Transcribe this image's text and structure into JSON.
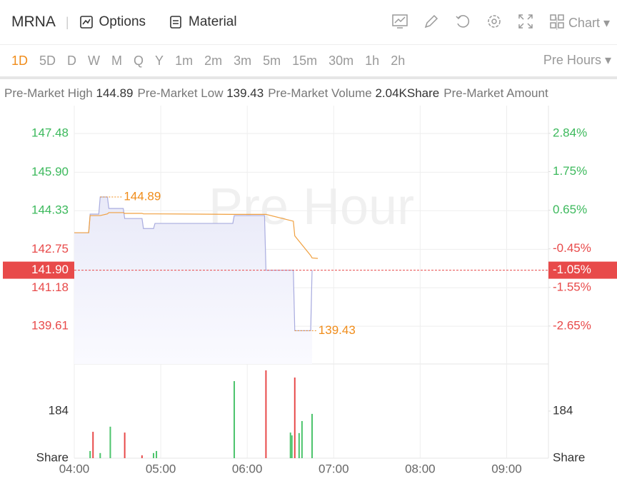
{
  "toolbar": {
    "symbol": "MRNA",
    "buttons": [
      "Options",
      "Material"
    ],
    "chart_button": "Chart",
    "intervals": [
      "1D",
      "5D",
      "D",
      "W",
      "M",
      "Q",
      "Y",
      "1m",
      "2m",
      "3m",
      "5m",
      "15m",
      "30m",
      "1h",
      "2h"
    ],
    "active_interval": "1D",
    "session": "Pre Hours"
  },
  "info": [
    {
      "label": "Pre-Market High",
      "value": "144.89"
    },
    {
      "label": "Pre-Market Low",
      "value": "139.43"
    },
    {
      "label": "Pre-Market Volume",
      "value": "2.04KShare"
    },
    {
      "label": "Pre-Market Amount",
      "value": ""
    }
  ],
  "chart_data": {
    "type": "line",
    "watermark": "Pre Hour",
    "x": [
      240,
      250,
      251,
      257,
      258,
      263,
      264,
      274,
      275,
      287,
      288,
      295,
      296,
      350,
      351,
      372,
      373,
      392,
      393,
      404,
      405,
      409
    ],
    "xlim": [
      240,
      569
    ],
    "xticks": [
      {
        "value": 240,
        "label": "04:00"
      },
      {
        "value": 300,
        "label": "05:00"
      },
      {
        "value": 360,
        "label": "06:00"
      },
      {
        "value": 420,
        "label": "07:00"
      },
      {
        "value": 480,
        "label": "08:00"
      },
      {
        "value": 540,
        "label": "09:00"
      }
    ],
    "series": [
      {
        "color": "#a9acdf",
        "fill": true,
        "values": [
          143.43,
          143.43,
          144.19,
          144.19,
          144.89,
          144.89,
          144.42,
          144.42,
          144.01,
          144.01,
          143.6,
          143.6,
          143.81,
          143.81,
          144.13,
          144.13,
          141.9,
          141.9,
          139.43,
          139.43,
          141.9,
          null
        ]
      },
      {
        "color": "#f0a040",
        "values": [
          143.43,
          143.43,
          144.13,
          144.13,
          144.13,
          144.2,
          144.25,
          144.25,
          144.22,
          144.22,
          144.2,
          144.2,
          144.2,
          144.18,
          144.18,
          144.18,
          144.18,
          143.9,
          143.3,
          142.5,
          142.4,
          142.38
        ]
      }
    ],
    "ylim": [
      138.07,
      148.62
    ],
    "yticks": [
      147.48,
      {
        "value": 145.9,
        "label": "145.90"
      },
      144.33,
      142.75,
      141.18,
      139.61
    ],
    "y2lim": [
      -3.73,
      3.63
    ],
    "y2ticks": [
      {
        "value": 2.84,
        "label": "2.84%"
      },
      {
        "value": 1.75,
        "label": "1.75%"
      },
      {
        "value": 0.65,
        "label": "0.65%"
      },
      {
        "value": -0.45,
        "label": "-0.45%"
      },
      {
        "value": -1.55,
        "label": "-1.55%"
      },
      {
        "value": -2.65,
        "label": "-2.65%"
      }
    ],
    "grid": true,
    "annotations": [
      {
        "x": 258,
        "value": 144.89
      },
      {
        "x": 393,
        "value": 139.43
      }
    ],
    "current": {
      "value": 141.9,
      "label": "141.90",
      "change_label": "-1.05%"
    },
    "volume": {
      "unit": "Share",
      "ylim": [
        0,
        368
      ],
      "yticks": [
        184
      ],
      "x": [
        251,
        253,
        258,
        265,
        275,
        287,
        295,
        297,
        351,
        373,
        390,
        391,
        393,
        396,
        398,
        405
      ],
      "values": [
        28,
        103,
        20,
        123,
        100,
        11,
        20,
        28,
        301,
        343,
        100,
        89,
        315,
        98,
        145,
        173
      ],
      "colors": [
        "#4cc46c",
        "#e84a4a",
        "#4cc46c",
        "#4cc46c",
        "#e84a4a",
        "#e84a4a",
        "#4cc46c",
        "#4cc46c",
        "#4cc46c",
        "#e84a4a",
        "#4cc46c",
        "#4cc46c",
        "#e84a4a",
        "#4cc46c",
        "#4cc46c",
        "#4cc46c"
      ]
    }
  }
}
